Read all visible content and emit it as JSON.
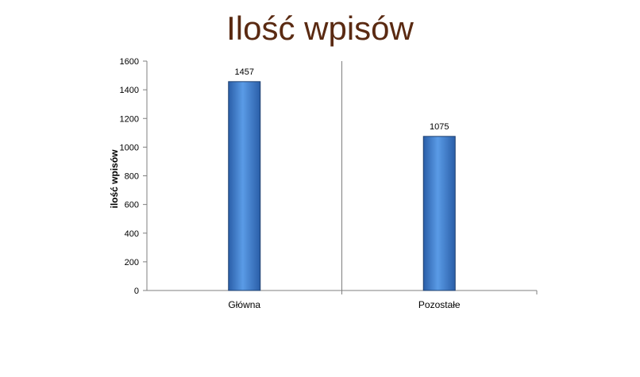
{
  "chart_data": {
    "type": "bar",
    "title": "Ilość wpisów",
    "ylabel": "ilość wpisów",
    "xlabel": "",
    "categories": [
      "Główna",
      "Pozostałe"
    ],
    "values": [
      1457,
      1075
    ],
    "data_labels": [
      "1457",
      "1075"
    ],
    "yticks": [
      0,
      200,
      400,
      600,
      800,
      1000,
      1200,
      1400,
      1600
    ],
    "ylim": [
      0,
      1600
    ],
    "grid": false,
    "legend": "none"
  },
  "colors": {
    "title": "#5a2a12",
    "bar_light": "#5a9be6",
    "bar_dark": "#2a5ea8",
    "bar_edge": "#1d3f6e",
    "axis": "#7f7f7f"
  }
}
